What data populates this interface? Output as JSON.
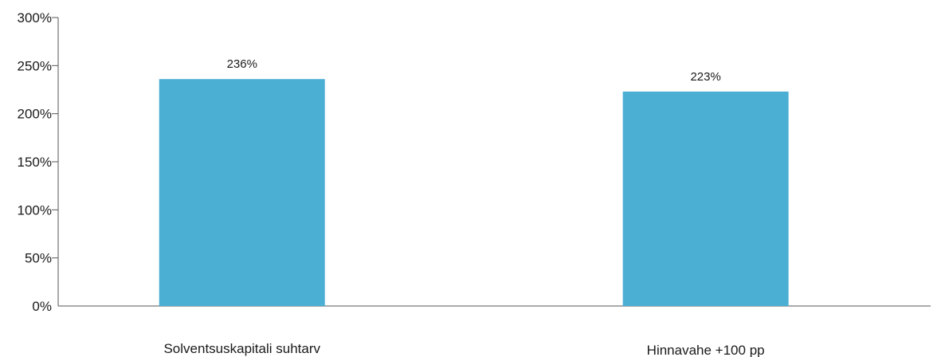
{
  "chart_data": {
    "type": "bar",
    "categories": [
      "Solventsuskapitali suhtarv",
      "Hinnavahe +100 pp"
    ],
    "values": [
      236,
      223
    ],
    "data_labels": [
      "236%",
      "223%"
    ],
    "ylim": [
      0,
      300
    ],
    "y_ticks": [
      0,
      50,
      100,
      150,
      200,
      250,
      300
    ],
    "y_tick_labels": [
      "0%",
      "50%",
      "100%",
      "150%",
      "200%",
      "250%",
      "300%"
    ],
    "grid": false,
    "legend": "none",
    "bar_color": "#4bafd3",
    "axis_color": "#555555",
    "text_color": "#1a1a1a"
  }
}
